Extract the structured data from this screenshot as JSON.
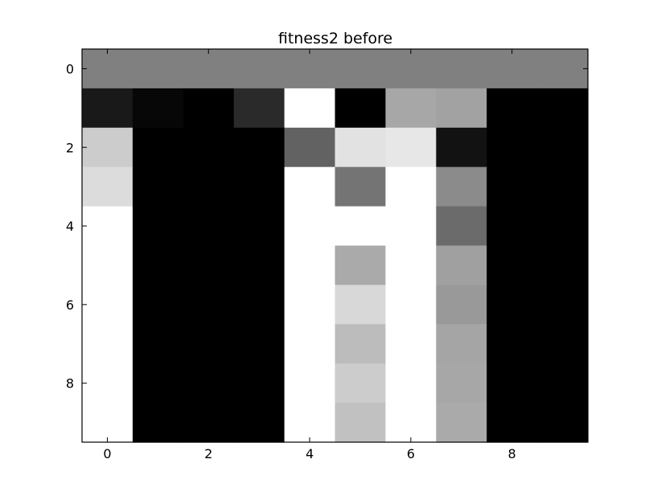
{
  "chart_data": {
    "type": "heatmap",
    "title": "fitness2 before",
    "xlabel": "",
    "ylabel": "",
    "colormap": "gray",
    "x_ticks": [
      0,
      2,
      4,
      6,
      8
    ],
    "y_ticks": [
      0,
      2,
      4,
      6,
      8
    ],
    "xlim": [
      -0.5,
      9.5
    ],
    "ylim": [
      9.5,
      -0.5
    ],
    "grid": false,
    "values": [
      [
        0.502,
        0.502,
        0.502,
        0.502,
        0.502,
        0.502,
        0.502,
        0.502,
        0.502,
        0.502
      ],
      [
        0.098,
        0.027,
        0.0,
        0.165,
        1.0,
        0.0,
        0.655,
        0.635,
        0.0,
        0.0
      ],
      [
        0.8,
        0.0,
        0.0,
        0.0,
        0.384,
        0.886,
        0.906,
        0.071,
        0.0,
        0.0
      ],
      [
        0.863,
        0.0,
        0.0,
        0.0,
        1.0,
        0.455,
        1.0,
        0.545,
        0.0,
        0.0
      ],
      [
        1.0,
        0.0,
        0.0,
        0.0,
        1.0,
        1.0,
        1.0,
        0.42,
        0.0,
        0.0
      ],
      [
        1.0,
        0.0,
        0.0,
        0.0,
        1.0,
        0.667,
        1.0,
        0.627,
        0.0,
        0.0
      ],
      [
        1.0,
        0.0,
        0.0,
        0.0,
        1.0,
        0.847,
        1.0,
        0.6,
        0.0,
        0.0
      ],
      [
        1.0,
        0.0,
        0.0,
        0.0,
        1.0,
        0.737,
        1.0,
        0.647,
        0.0,
        0.0
      ],
      [
        1.0,
        0.0,
        0.0,
        0.0,
        1.0,
        0.8,
        1.0,
        0.655,
        0.0,
        0.0
      ],
      [
        1.0,
        0.0,
        0.0,
        0.0,
        1.0,
        0.757,
        1.0,
        0.667,
        0.0,
        0.0
      ]
    ]
  }
}
